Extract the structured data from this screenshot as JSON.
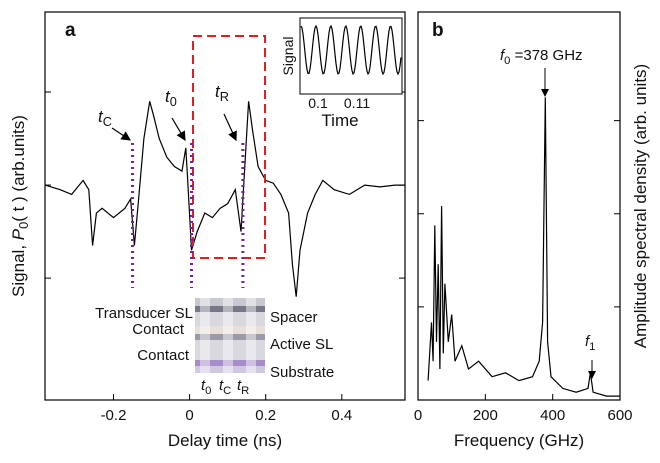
{
  "chart_data": [
    {
      "type": "line",
      "panel_label": "a",
      "xlabel": "Delay time (ns)",
      "ylabel": {
        "pre": "Signal, ",
        "var": "P",
        "sub": "0",
        "post": "( t ) (arb.units)"
      },
      "xlim": [
        -0.38,
        0.566
      ],
      "ylim": [
        -2.31,
        1.86
      ],
      "xticks": [
        {
          "value": -0.2,
          "label": "-0.2"
        },
        0,
        0.2,
        0.4
      ],
      "yticks": [
        -1,
        0,
        1
      ],
      "color": "#000000",
      "x": [
        -0.38,
        -0.34,
        -0.31,
        -0.28,
        -0.265,
        -0.255,
        -0.245,
        -0.23,
        -0.2,
        -0.17,
        -0.155,
        -0.145,
        -0.135,
        -0.12,
        -0.105,
        -0.095,
        -0.08,
        -0.06,
        -0.04,
        -0.02,
        -0.01,
        -0.005,
        0.005,
        0.02,
        0.04,
        0.06,
        0.08,
        0.1,
        0.12,
        0.135,
        0.145,
        0.155,
        0.165,
        0.18,
        0.2,
        0.22,
        0.24,
        0.26,
        0.27,
        0.28,
        0.29,
        0.31,
        0.33,
        0.35,
        0.38,
        0.42,
        0.46,
        0.5,
        0.54,
        0.566
      ],
      "values": [
        0,
        -0.05,
        -0.1,
        0.05,
        -0.05,
        -0.65,
        -0.3,
        -0.25,
        -0.35,
        -0.25,
        -0.15,
        -0.65,
        -0.2,
        0.5,
        0.9,
        0.75,
        0.5,
        0.3,
        0.2,
        0.15,
        0.4,
        0.05,
        -0.7,
        -0.5,
        -0.3,
        -0.35,
        -0.25,
        -0.2,
        -0.05,
        -0.5,
        0.2,
        0.9,
        0.6,
        0.2,
        0.05,
        0.02,
        -0.1,
        -0.3,
        -0.85,
        -1.2,
        -0.7,
        -0.3,
        -0.1,
        0.05,
        -0.05,
        -0.1,
        0,
        -0.02,
        0,
        0
      ],
      "markers": [
        {
          "x": -0.15,
          "base": "t",
          "sub": "C"
        },
        {
          "x": 0.005,
          "base": "t",
          "sub": "0"
        },
        {
          "x": 0.14,
          "base": "t",
          "sub": "R"
        }
      ],
      "inset": {
        "ylabel": "Signal",
        "xlabel": "Time",
        "xticks": [
          "0.1",
          "0.11"
        ]
      },
      "schematic": {
        "left": [
          "Transducer SL",
          "Contact",
          "Contact"
        ],
        "right": [
          "Spacer",
          "Active SL",
          "Substrate"
        ],
        "bottom": [
          {
            "base": "t",
            "sub": "0"
          },
          {
            "base": "t",
            "sub": "C"
          },
          {
            "base": "t",
            "sub": "R"
          }
        ]
      }
    },
    {
      "type": "line",
      "panel_label": "b",
      "xlabel": "Frequency (GHz)",
      "ylabel": "Amplitude spectral density (arb. units)",
      "xlim": [
        0,
        600
      ],
      "ylim": [
        0,
        1
      ],
      "xticks": [
        0,
        200,
        400,
        600
      ],
      "yticks": [
        0.24,
        0.48,
        0.72
      ],
      "color": "#000000",
      "x": [
        30,
        40,
        45,
        50,
        55,
        60,
        65,
        70,
        75,
        80,
        90,
        100,
        110,
        130,
        150,
        180,
        220,
        260,
        300,
        340,
        360,
        370,
        378,
        385,
        395,
        430,
        470,
        505,
        512,
        520,
        560,
        600
      ],
      "values": [
        0.05,
        0.2,
        0.1,
        0.45,
        0.15,
        0.35,
        0.08,
        0.5,
        0.12,
        0.3,
        0.15,
        0.22,
        0.1,
        0.14,
        0.08,
        0.1,
        0.06,
        0.07,
        0.05,
        0.06,
        0.1,
        0.2,
        0.78,
        0.15,
        0.06,
        0.03,
        0.02,
        0.03,
        0.07,
        0.02,
        0.01,
        0.01
      ],
      "annotations": [
        {
          "var": "f",
          "sub": "0",
          "text": " =378 GHz"
        },
        {
          "var": "f",
          "sub": "1"
        }
      ]
    }
  ]
}
